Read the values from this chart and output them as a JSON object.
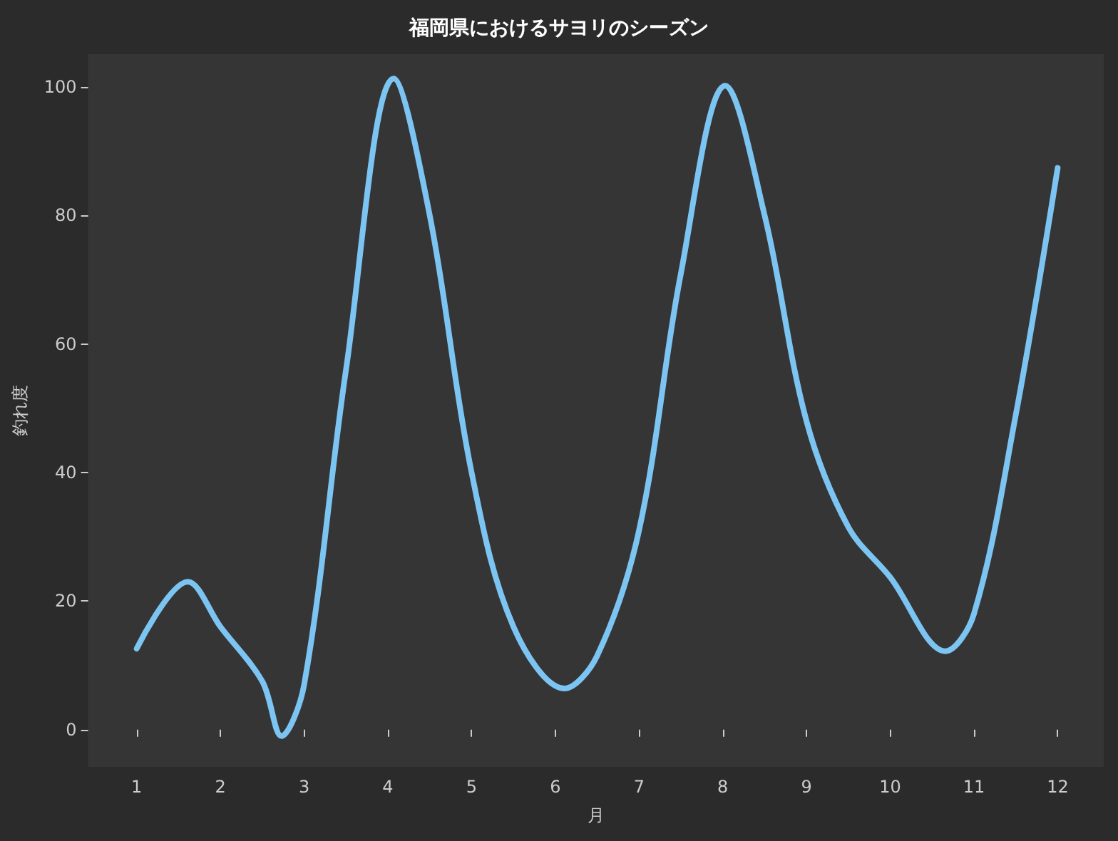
{
  "chart_data": {
    "type": "line",
    "title": "福岡県におけるサヨリのシーズン",
    "xlabel": "月",
    "ylabel": "釣れ度",
    "x": [
      1,
      1.61,
      2,
      2.5,
      2.73,
      3,
      3.5,
      4.07,
      4.5,
      5,
      5.5,
      6.11,
      6.5,
      7,
      7.5,
      8.03,
      8.5,
      9,
      9.5,
      10,
      10.66,
      11,
      11.5,
      12
    ],
    "series": [
      {
        "color": "#7cc4f2",
        "values": [
          12.6,
          23,
          16,
          7.5,
          -1,
          7,
          56,
          101.3,
          80,
          40,
          16,
          6.4,
          11.5,
          31,
          71,
          100.2,
          80,
          48,
          31.5,
          23.7,
          12.2,
          18,
          49,
          87.4
        ]
      }
    ],
    "xlim": [
      0.42,
      12.55
    ],
    "xticks": [
      1,
      2,
      3,
      4,
      5,
      6,
      7,
      8,
      9,
      10,
      11,
      12
    ],
    "ylim": [
      -5.8,
      105.1
    ],
    "yticks": [
      0,
      20,
      40,
      60,
      80,
      100
    ],
    "grid": false,
    "marker": "none",
    "line_style": "solid"
  }
}
